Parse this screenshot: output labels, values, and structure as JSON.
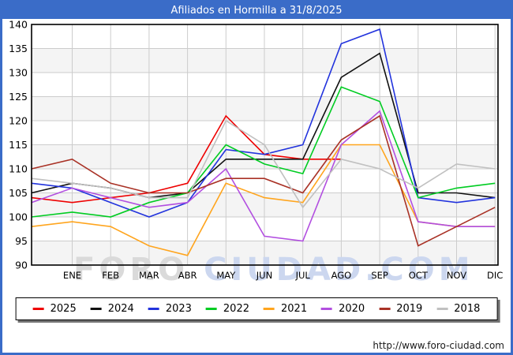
{
  "page": {
    "title": "Afiliados en Hormilla a 31/8/2025",
    "url": "http://www.foro-ciudad.com",
    "watermark": {
      "part1": "FORO ",
      "part2": "CIUDAD.COM"
    }
  },
  "colors": {
    "accent_blue": "#3a6cc8",
    "grid": "#cccccc",
    "band": "#f4f4f4",
    "plot_border": "#000000",
    "watermark_gray": "#dadada",
    "watermark_blue": "#ccd7ef"
  },
  "chart_data": {
    "type": "line",
    "title": "Afiliados en Hormilla a 31/8/2025",
    "x_labels": [
      "ENE",
      "FEB",
      "MAR",
      "ABR",
      "MAY",
      "JUN",
      "JUL",
      "AGO",
      "SEP",
      "OCT",
      "NOV",
      "DIC"
    ],
    "y_ticks": [
      140,
      135,
      130,
      125,
      120,
      115,
      110,
      105,
      100,
      95,
      90
    ],
    "ylim": [
      90,
      140
    ],
    "ytick_step": 5,
    "grid": true,
    "legend_position": "bottom",
    "series": [
      {
        "name": "2025",
        "color": "#ee0000",
        "axis_edge_value": 104,
        "values": [
          103,
          104,
          105,
          107,
          121,
          113,
          112,
          112
        ]
      },
      {
        "name": "2024",
        "color": "#111111",
        "axis_edge_value": 105,
        "values": [
          107,
          106,
          104,
          105,
          112,
          112,
          112,
          129,
          134,
          105,
          105,
          104
        ]
      },
      {
        "name": "2023",
        "color": "#2233dd",
        "axis_edge_value": 107,
        "values": [
          106,
          103,
          100,
          103,
          114,
          113,
          115,
          136,
          139,
          104,
          103,
          104
        ]
      },
      {
        "name": "2022",
        "color": "#00cc22",
        "axis_edge_value": 100,
        "values": [
          101,
          100,
          103,
          105,
          115,
          111,
          109,
          127,
          124,
          104,
          106,
          107
        ]
      },
      {
        "name": "2021",
        "color": "#ffa51e",
        "axis_edge_value": 98,
        "values": [
          99,
          98,
          94,
          92,
          107,
          104,
          103,
          115,
          115,
          99,
          98,
          98
        ]
      },
      {
        "name": "2020",
        "color": "#b24fe0",
        "axis_edge_value": 103,
        "values": [
          106,
          104,
          102,
          103,
          110,
          96,
          95,
          115,
          122,
          99,
          98,
          98
        ]
      },
      {
        "name": "2019",
        "color": "#a93226",
        "axis_edge_value": 110,
        "values": [
          112,
          107,
          105,
          105,
          108,
          108,
          105,
          116,
          121,
          94,
          98,
          102
        ]
      },
      {
        "name": "2018",
        "color": "#c0c0c0",
        "axis_edge_value": 108,
        "values": [
          107,
          106,
          104,
          104,
          120,
          115,
          102,
          112,
          110,
          106,
          111,
          110
        ]
      }
    ]
  }
}
